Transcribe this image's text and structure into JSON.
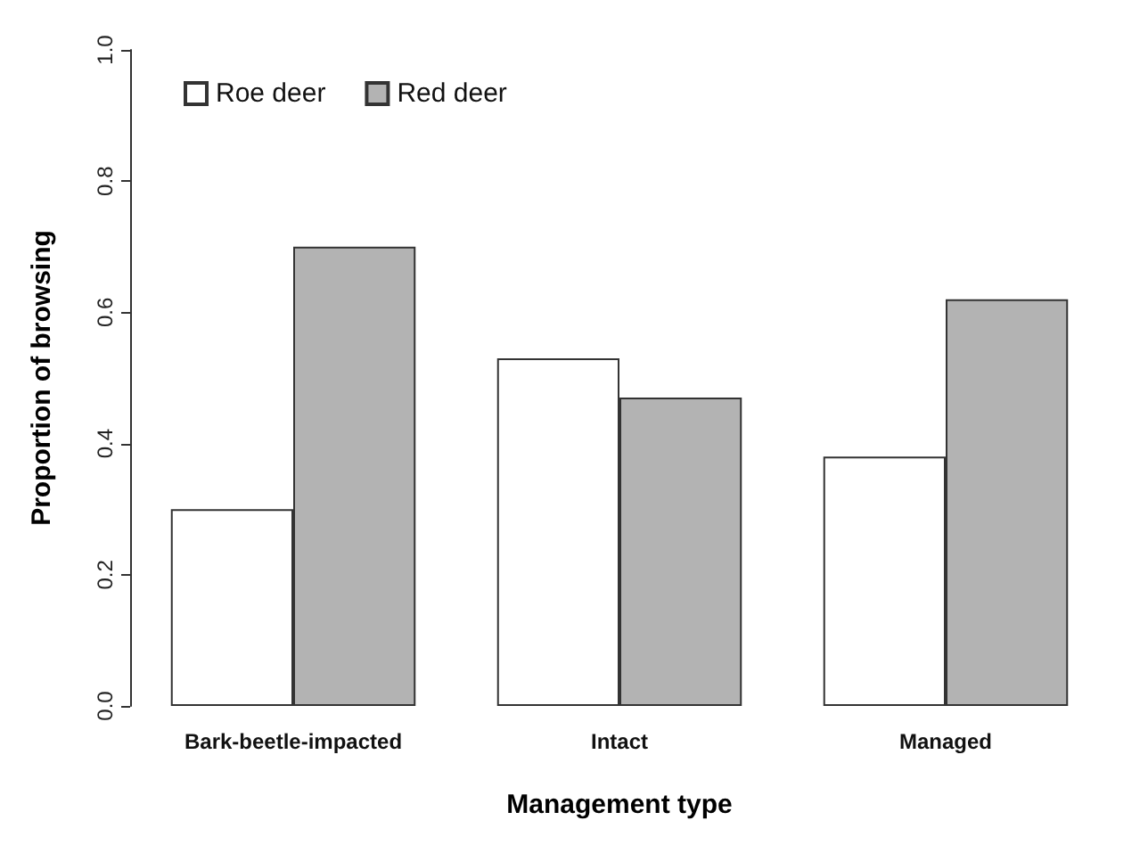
{
  "chart_data": {
    "type": "bar",
    "xlabel": "Management type",
    "ylabel": "Proportion of browsing",
    "categories": [
      "Bark-beetle-impacted",
      "Intact",
      "Managed"
    ],
    "series": [
      {
        "name": "Roe deer",
        "color": "#ffffff",
        "values": [
          0.3,
          0.53,
          0.38
        ]
      },
      {
        "name": "Red deer",
        "color": "#b3b3b3",
        "values": [
          0.7,
          0.47,
          0.62
        ]
      }
    ],
    "ylim": [
      0,
      1
    ],
    "yticks": [
      {
        "value": 0,
        "label": "0.0"
      },
      {
        "value": 0.2,
        "label": "0.2"
      },
      {
        "value": 0.4,
        "label": "0.4"
      },
      {
        "value": 0.6,
        "label": "0.6"
      },
      {
        "value": 0.8,
        "label": "0.8"
      },
      {
        "value": 1,
        "label": "1.0"
      }
    ],
    "grid": false,
    "legend": "top left"
  }
}
